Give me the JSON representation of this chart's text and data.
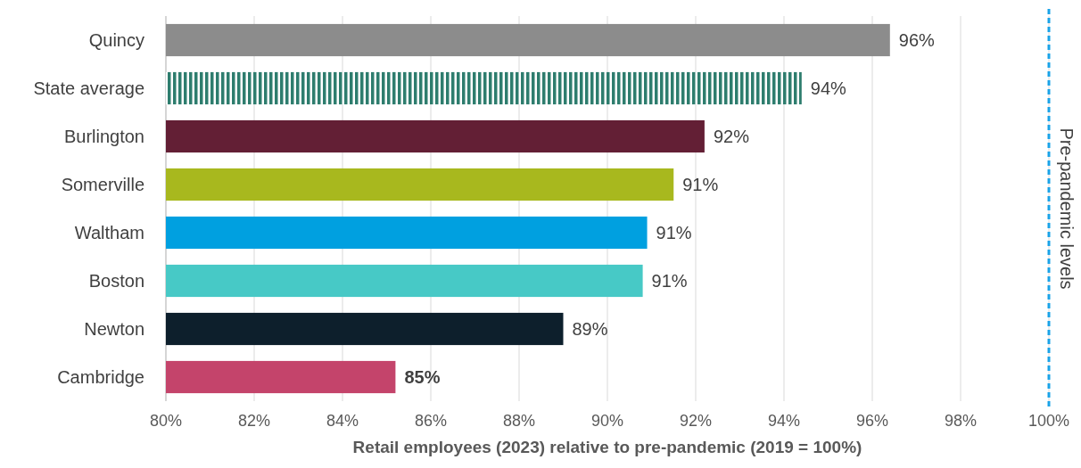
{
  "chart_data": {
    "type": "bar",
    "orientation": "horizontal",
    "categories": [
      "Quincy",
      "State average",
      "Burlington",
      "Somerville",
      "Waltham",
      "Boston",
      "Newton",
      "Cambridge"
    ],
    "values": [
      96.4,
      94.4,
      92.2,
      91.5,
      90.9,
      90.8,
      89.0,
      85.2
    ],
    "colors": [
      "#8c8c8c",
      "#2e7d6e",
      "#631f35",
      "#a8b81e",
      "#00a0e0",
      "#47c9c6",
      "#0d1f2c",
      "#c4446b"
    ],
    "value_labels": [
      "96%",
      "94%",
      "92%",
      "91%",
      "91%",
      "91%",
      "89%",
      "85%"
    ],
    "xlim": [
      80,
      100
    ],
    "xticks": [
      {
        "value": 80,
        "label": "80%"
      },
      {
        "value": 82,
        "label": "82%"
      },
      {
        "value": 84,
        "label": "84%"
      },
      {
        "value": 86,
        "label": "86%"
      },
      {
        "value": 88,
        "label": "88%"
      },
      {
        "value": 90,
        "label": "90%"
      },
      {
        "value": 92,
        "label": "92%"
      },
      {
        "value": 94,
        "label": "94%"
      },
      {
        "value": 96,
        "label": "96%"
      },
      {
        "value": 98,
        "label": "98%"
      },
      {
        "value": 100,
        "label": "100%"
      }
    ],
    "xlabel": "Retail employees (2023) relative to pre-pandemic (2019 = 100%)",
    "grid": "x",
    "ref_lines": [
      {
        "axis": "x",
        "value": 100,
        "label": "Pre-pandemic levels",
        "color": "#1aa3e8",
        "line_style": "dashed"
      }
    ]
  }
}
